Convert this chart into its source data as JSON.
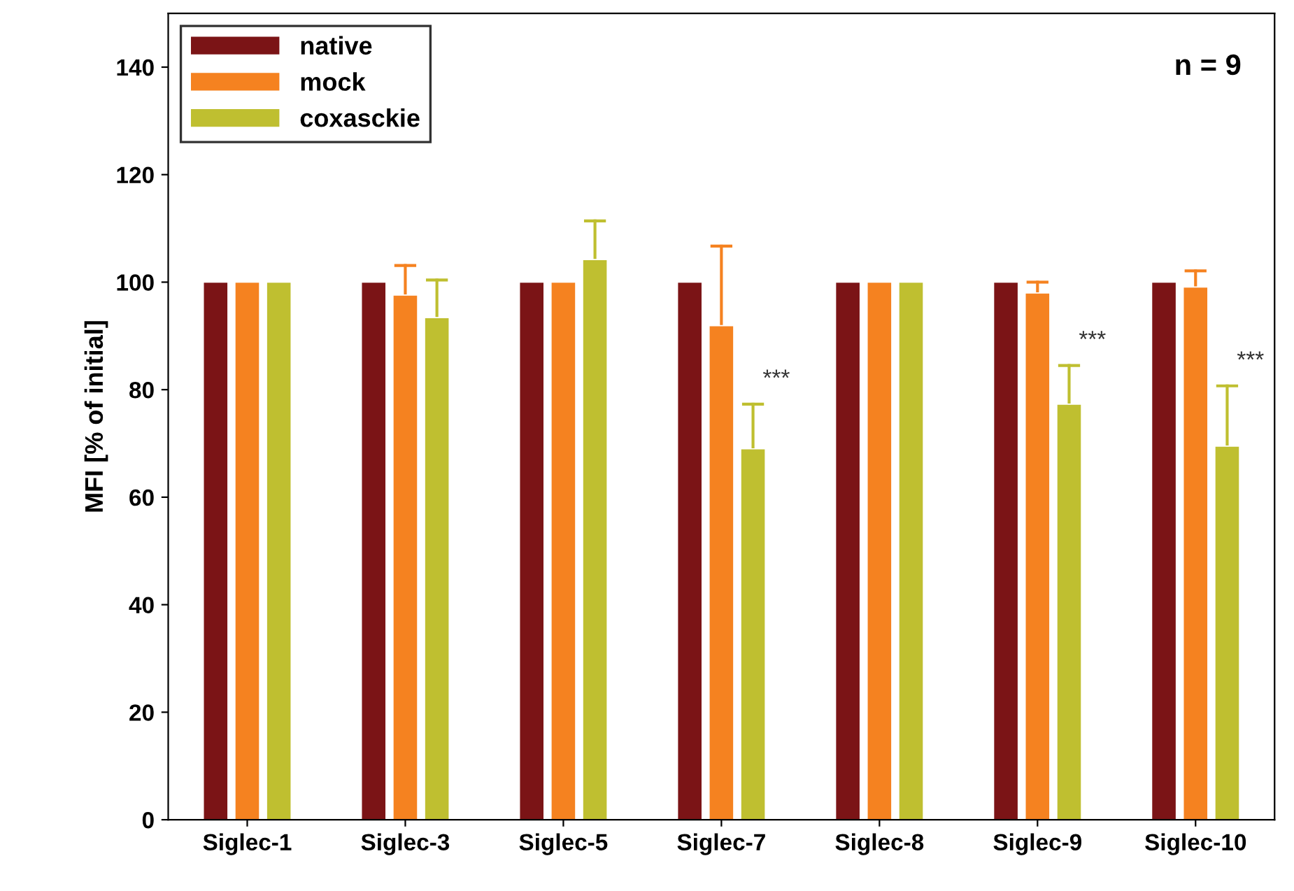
{
  "chart_data": {
    "type": "bar",
    "ylabel": "MFI [% of initial]",
    "categories": [
      "Siglec-1",
      "Siglec-3",
      "Siglec-5",
      "Siglec-7",
      "Siglec-8",
      "Siglec-9",
      "Siglec-10"
    ],
    "series": [
      {
        "name": "native",
        "color": "#7b1416",
        "values": [
          100,
          100,
          100,
          100,
          100,
          100,
          100
        ]
      },
      {
        "name": "mock",
        "color": "#f58220",
        "values": [
          100,
          97.6,
          100,
          91.9,
          100,
          98,
          99.1
        ],
        "errors": [
          null,
          [
            97.6,
            103.1
          ],
          null,
          [
            91.9,
            106.7
          ],
          null,
          [
            98,
            100
          ],
          [
            99.1,
            102.1
          ]
        ]
      },
      {
        "name": "coxasckie",
        "color": "#bfbf30",
        "values": [
          100,
          93.4,
          104.2,
          69,
          100,
          77.3,
          69.5
        ],
        "errors": [
          null,
          [
            93.4,
            100.4
          ],
          [
            104.2,
            111.4
          ],
          [
            69,
            77.3
          ],
          null,
          [
            77.3,
            84.5
          ],
          [
            69.5,
            80.7
          ]
        ]
      }
    ],
    "annotations": [
      "n = 9",
      "***",
      "***",
      "***"
    ],
    "ylim": [
      0,
      150
    ],
    "yticks": [
      0,
      20,
      40,
      60,
      80,
      100,
      120,
      140
    ],
    "grid": false,
    "legend": "top left"
  }
}
